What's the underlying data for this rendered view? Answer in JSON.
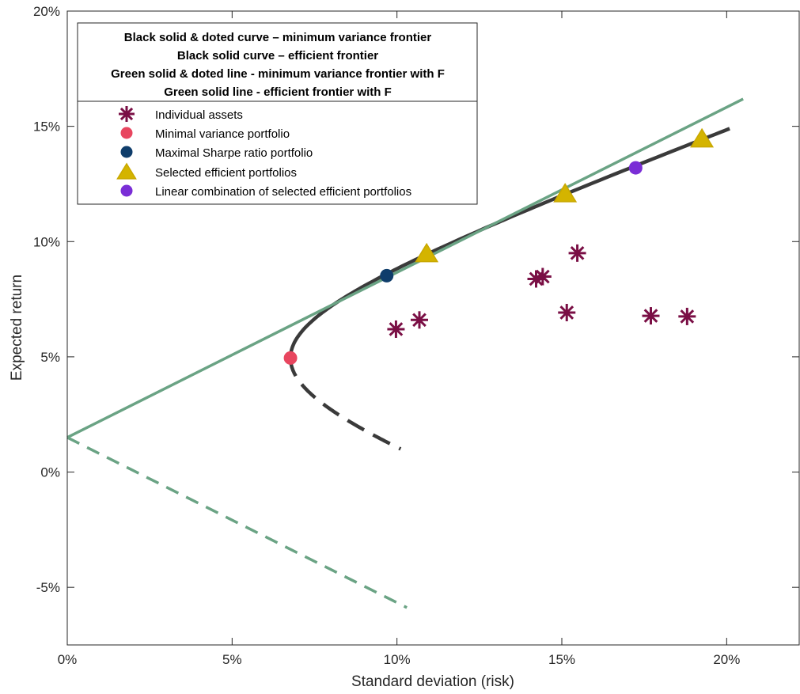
{
  "chart_data": {
    "type": "scatter",
    "xlabel": "Standard deviation (risk)",
    "ylabel": "Expected return",
    "xlim": [
      0,
      0.222
    ],
    "ylim": [
      -0.075,
      0.2
    ],
    "x_ticks": [
      0,
      0.05,
      0.1,
      0.15,
      0.2
    ],
    "x_tick_labels": [
      "0%",
      "5%",
      "10%",
      "15%",
      "20%"
    ],
    "y_ticks": [
      -0.05,
      0,
      0.05,
      0.1,
      0.15,
      0.2
    ],
    "y_tick_labels": [
      "-5%",
      "0%",
      "5%",
      "10%",
      "15%",
      "20%"
    ],
    "grid": false,
    "risk_free_rate": 0.015,
    "legend_title_lines": [
      "Black solid & doted curve – minimum variance frontier",
      "Black solid curve – efficient frontier",
      "Green solid & doted line - minimum variance frontier with F",
      "Green solid line - efficient frontier with F"
    ],
    "legend_position": "top-left",
    "colors": {
      "frontier": "#3a3a3a",
      "cml": "#6aa384",
      "assets": "#7a0f45",
      "min_variance": "#e8465f",
      "max_sharpe": "#0f3d6b",
      "selected": "#d4b400",
      "selected_edge": "#c9a800",
      "linear_combo": "#7a2ed6"
    },
    "min_variance_frontier": {
      "name": "Black solid & doted curve",
      "a": 0.0049,
      "b": 0.0046,
      "m0": 0.0495,
      "upper_max_return": 0.149,
      "lower_min_return": 0.01
    },
    "cml_line": {
      "name": "Green solid line",
      "slope": 0.7164,
      "intercept": 0.015,
      "x_max": 0.205
    },
    "cml_lower_line": {
      "name": "Green solid & doted line",
      "slope": -0.7164,
      "intercept": 0.015,
      "x_max": 0.103
    },
    "series": [
      {
        "name": "Individual assets",
        "marker": "asterisk",
        "points": [
          {
            "x": 0.0997,
            "y": 0.062
          },
          {
            "x": 0.1068,
            "y": 0.066
          },
          {
            "x": 0.1422,
            "y": 0.0838
          },
          {
            "x": 0.1442,
            "y": 0.0848
          },
          {
            "x": 0.1515,
            "y": 0.0692
          },
          {
            "x": 0.1547,
            "y": 0.095
          },
          {
            "x": 0.177,
            "y": 0.0678
          },
          {
            "x": 0.188,
            "y": 0.0675
          }
        ]
      },
      {
        "name": "Minimal variance portfolio",
        "marker": "circle",
        "points": [
          {
            "x": 0.0677,
            "y": 0.0495
          }
        ]
      },
      {
        "name": "Maximal Sharpe ratio portfolio",
        "marker": "circle",
        "points": [
          {
            "x": 0.0969,
            "y": 0.0852
          }
        ]
      },
      {
        "name": "Selected efficient portfolios",
        "marker": "triangle",
        "points": [
          {
            "x": 0.109,
            "y": 0.0945
          },
          {
            "x": 0.151,
            "y": 0.1205
          },
          {
            "x": 0.1925,
            "y": 0.1443
          }
        ]
      },
      {
        "name": "Linear combination of selected efficient portfolios",
        "marker": "circle",
        "points": [
          {
            "x": 0.1724,
            "y": 0.132
          }
        ]
      }
    ]
  }
}
